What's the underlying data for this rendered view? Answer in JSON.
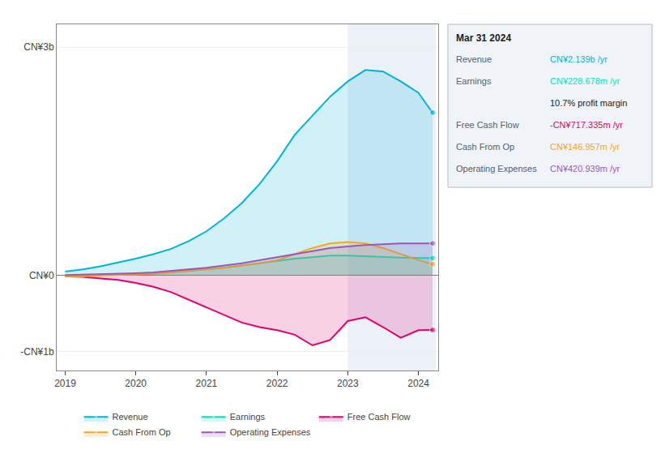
{
  "chart_data": {
    "type": "area",
    "x": [
      2019.0,
      2019.25,
      2019.5,
      2019.75,
      2020.0,
      2020.25,
      2020.5,
      2020.75,
      2021.0,
      2021.25,
      2021.5,
      2021.75,
      2022.0,
      2022.25,
      2022.5,
      2022.75,
      2023.0,
      2023.25,
      2023.5,
      2023.75,
      2024.0,
      2024.2
    ],
    "series": [
      {
        "name": "Revenue",
        "color": "#00b4d8",
        "values": [
          0.05,
          0.08,
          0.12,
          0.17,
          0.22,
          0.28,
          0.35,
          0.45,
          0.58,
          0.75,
          0.95,
          1.2,
          1.5,
          1.85,
          2.1,
          2.35,
          2.55,
          2.7,
          2.68,
          2.55,
          2.4,
          2.139
        ]
      },
      {
        "name": "Earnings",
        "color": "#00e5c0",
        "values": [
          -0.005,
          0.0,
          0.005,
          0.01,
          0.02,
          0.03,
          0.04,
          0.06,
          0.08,
          0.1,
          0.13,
          0.16,
          0.19,
          0.22,
          0.24,
          0.26,
          0.26,
          0.25,
          0.24,
          0.235,
          0.228,
          0.2287
        ]
      },
      {
        "name": "Free Cash Flow",
        "color": "#e0006e",
        "values": [
          -0.01,
          -0.02,
          -0.04,
          -0.06,
          -0.1,
          -0.15,
          -0.22,
          -0.32,
          -0.42,
          -0.52,
          -0.62,
          -0.68,
          -0.72,
          -0.78,
          -0.92,
          -0.85,
          -0.6,
          -0.55,
          -0.68,
          -0.82,
          -0.72,
          -0.717
        ]
      },
      {
        "name": "Cash From Op",
        "color": "#f5a623",
        "values": [
          -0.01,
          -0.01,
          0.0,
          0.005,
          0.01,
          0.02,
          0.04,
          0.06,
          0.08,
          0.1,
          0.13,
          0.16,
          0.2,
          0.28,
          0.36,
          0.42,
          0.44,
          0.42,
          0.36,
          0.28,
          0.2,
          0.147
        ]
      },
      {
        "name": "Operating Expenses",
        "color": "#9b59b6",
        "values": [
          0.005,
          0.01,
          0.015,
          0.02,
          0.03,
          0.04,
          0.06,
          0.08,
          0.1,
          0.13,
          0.16,
          0.2,
          0.24,
          0.28,
          0.32,
          0.36,
          0.38,
          0.4,
          0.41,
          0.42,
          0.42,
          0.421
        ]
      }
    ],
    "xlim": [
      2018.88,
      2024.28
    ],
    "xticks": [
      2019,
      2020,
      2021,
      2022,
      2023,
      2024
    ],
    "ylim": [
      -1.25,
      3.3
    ],
    "yticks": [
      {
        "value": 3,
        "label": "CN¥3b"
      },
      {
        "value": 0,
        "label": "CN¥0"
      },
      {
        "value": -1,
        "label": "-CN¥1b"
      }
    ],
    "grid": true,
    "legend": "bottom",
    "highlight_x": [
      2023.0,
      2024.25
    ],
    "annotations": [
      {
        "text": "Mar 31 2024"
      },
      {
        "label": "Revenue",
        "text": "CN¥2.139b /yr",
        "color": "#00b4d8"
      },
      {
        "label": "Earnings",
        "text": "CN¥228.678m /yr",
        "color": "#00e5c0"
      },
      {
        "text": "10.7% profit margin"
      },
      {
        "label": "Free Cash Flow",
        "text": "-CN¥717.335m /yr",
        "color": "#e0006e"
      },
      {
        "label": "Cash From Op",
        "text": "CN¥146.957m /yr",
        "color": "#f5a623"
      },
      {
        "label": "Operating Expenses",
        "text": "CN¥420.939m /yr",
        "color": "#9b59b6"
      }
    ]
  }
}
